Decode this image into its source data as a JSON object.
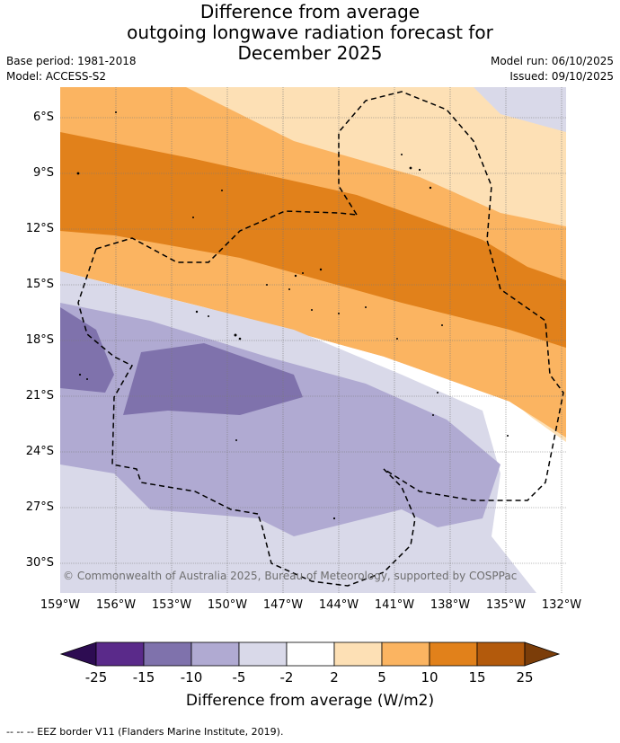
{
  "title": {
    "line1": "Difference from average",
    "line2": "outgoing longwave radiation forecast for",
    "line3": "December 2025"
  },
  "meta": {
    "base_period": "Base period: 1981-2018",
    "model": "Model: ACCESS-S2",
    "model_run": "Model run: 06/10/2025",
    "issued": "Issued: 09/10/2025"
  },
  "map": {
    "latitude_labels": [
      "6°S",
      "9°S",
      "12°S",
      "15°S",
      "18°S",
      "21°S",
      "24°S",
      "27°S",
      "30°S"
    ],
    "longitude_labels": [
      "159°W",
      "156°W",
      "153°W",
      "150°W",
      "147°W",
      "144°W",
      "141°W",
      "138°W",
      "135°W",
      "132°W"
    ],
    "copyright": "© Commonwealth of Australia 2025, Bureau of Meteorology, supported by COSPPac"
  },
  "colorbar": {
    "ticks": [
      "-25",
      "-15",
      "-10",
      "-5",
      "-2",
      "2",
      "5",
      "10",
      "15",
      "25"
    ],
    "colors": [
      "#5a2a8a",
      "#7f72ac",
      "#b0aad2",
      "#d9d9e9",
      "#ffffff",
      "#fde0b5",
      "#fbb461",
      "#e1811b",
      "#b35a0c"
    ],
    "under_color": "#2d0c52",
    "over_color": "#7b3d09",
    "label": "Difference from average (W/m2)"
  },
  "legend": {
    "eez": "--  --  -- EEZ border V11 (Flanders Marine Institute, 2019)."
  }
}
